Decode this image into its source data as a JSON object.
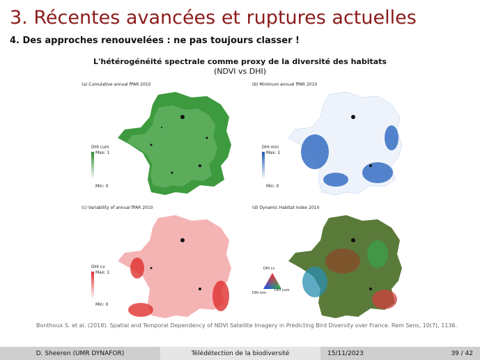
{
  "slide": {
    "title": "3. Récentes avancées et ruptures actuelles",
    "subtitle": "4. Des approches renouvelées : ne pas toujours classer !"
  },
  "figure": {
    "title": "L'hétérogénéité spectrale comme proxy de la diversité des habitats",
    "subtitle": "(NDVI vs DHI)",
    "panels": [
      {
        "label": "(a) Cumulative annual fPAR 2010",
        "legend_title": "DHI cum",
        "max_label": "Max: 1",
        "min_label": "Min: 0",
        "color": "#2e8b2e"
      },
      {
        "label": "(b) Minimum annual fPAR 2010",
        "legend_title": "DHI min",
        "max_label": "Max: 1",
        "min_label": "Min: 0",
        "color": "#1f5fb5"
      },
      {
        "label": "(c) Variability of annual fPAR 2010",
        "legend_title": "DHI cv",
        "max_label": "Max: 1",
        "min_label": "Min: 0",
        "color": "#e03030"
      },
      {
        "label": "(d) Dynamic Habitat Index 2010",
        "tri_top": "DHI cv",
        "tri_left": "DHI min",
        "tri_right": "DHI cum"
      }
    ],
    "citation": "Bonthoux S. et al. (2018). Spatial and Temporal Dependency of NDVI Satellite Imagery in Predicting Bird Diversity over France. Rem Sens, 10(7), 1136."
  },
  "footer": {
    "author": "D. Sheeren (UMR DYNAFOR)",
    "course": "Télédétection de la biodiversité",
    "date": "15/11/2023",
    "page": "39 / 42"
  }
}
